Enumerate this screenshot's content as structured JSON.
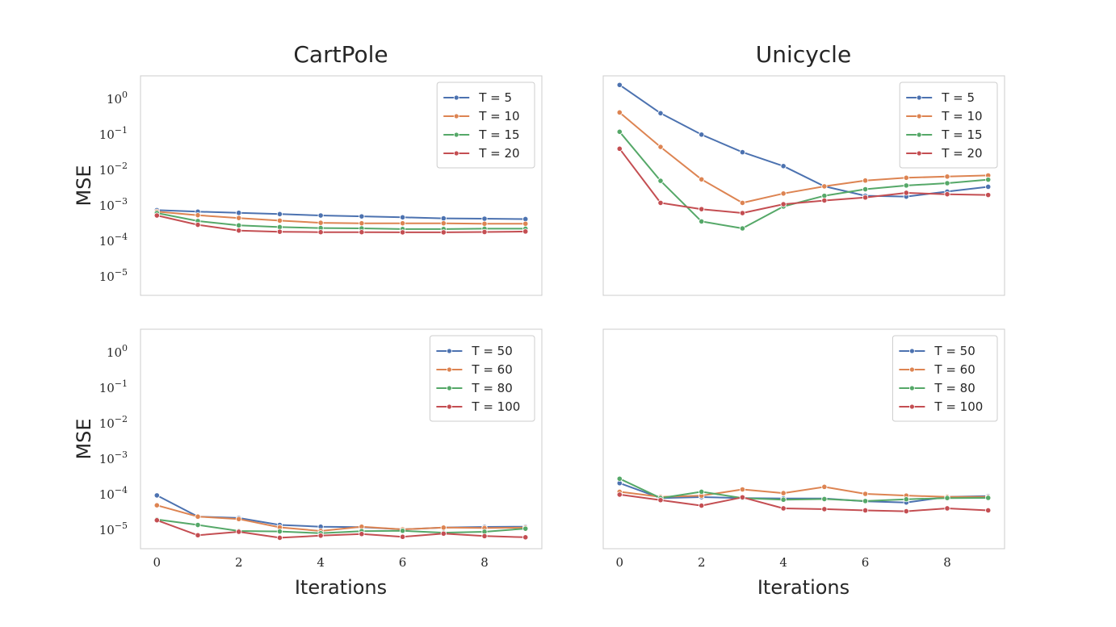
{
  "columns": [
    "CartPole",
    "Unicycle"
  ],
  "xlabel": "Iterations",
  "ylabel": "MSE",
  "series_colors": [
    "#4c72b0",
    "#dd8452",
    "#55a868",
    "#c44e52"
  ],
  "chart_data": [
    {
      "type": "line",
      "column": "CartPole",
      "row": 0,
      "x": [
        0,
        1,
        2,
        3,
        4,
        5,
        6,
        7,
        8,
        9
      ],
      "yscale": "log",
      "ylim": [
        3e-06,
        4.5
      ],
      "xlim": [
        -0.4,
        9.4
      ],
      "yticks": [
        -5,
        -4,
        -3,
        -2,
        -1,
        0
      ],
      "show_yticks": true,
      "show_xticks": false,
      "xticks": [],
      "legend_position": "upper-right",
      "series": [
        {
          "name": "T = 5",
          "values": [
            0.00075,
            0.00068,
            0.00063,
            0.00058,
            0.00053,
            0.0005,
            0.00047,
            0.00044,
            0.00043,
            0.00042
          ]
        },
        {
          "name": "T = 10",
          "values": [
            0.00068,
            0.00054,
            0.00045,
            0.00038,
            0.00033,
            0.00032,
            0.00032,
            0.00032,
            0.00031,
            0.00031
          ]
        },
        {
          "name": "T = 15",
          "values": [
            0.00062,
            0.00037,
            0.00028,
            0.00025,
            0.000235,
            0.00023,
            0.00022,
            0.00022,
            0.000225,
            0.000225
          ]
        },
        {
          "name": "T = 20",
          "values": [
            0.00053,
            0.00029,
            0.0002,
            0.000185,
            0.00018,
            0.00018,
            0.000178,
            0.000178,
            0.000182,
            0.000188
          ]
        }
      ]
    },
    {
      "type": "line",
      "column": "Unicycle",
      "row": 0,
      "x": [
        0,
        1,
        2,
        3,
        4,
        5,
        6,
        7,
        8,
        9
      ],
      "yscale": "log",
      "ylim": [
        3e-06,
        4.5
      ],
      "xlim": [
        -0.4,
        9.4
      ],
      "yticks": [],
      "show_yticks": false,
      "show_xticks": false,
      "xticks": [],
      "legend_position": "upper-right",
      "series": [
        {
          "name": "T = 5",
          "values": [
            2.5,
            0.4,
            0.1,
            0.032,
            0.013,
            0.0035,
            0.0019,
            0.0018,
            0.0025,
            0.0034
          ]
        },
        {
          "name": "T = 10",
          "values": [
            0.42,
            0.045,
            0.0055,
            0.0012,
            0.0022,
            0.0035,
            0.0051,
            0.0061,
            0.0066,
            0.0071
          ]
        },
        {
          "name": "T = 15",
          "values": [
            0.12,
            0.005,
            0.00036,
            0.00023,
            0.00095,
            0.0019,
            0.0029,
            0.0037,
            0.0043,
            0.0054
          ]
        },
        {
          "name": "T = 20",
          "values": [
            0.04,
            0.0012,
            0.0008,
            0.00062,
            0.0011,
            0.0014,
            0.0017,
            0.0023,
            0.0021,
            0.002
          ]
        }
      ]
    },
    {
      "type": "line",
      "column": "CartPole",
      "row": 1,
      "x": [
        0,
        1,
        2,
        3,
        4,
        5,
        6,
        7,
        8,
        9
      ],
      "yscale": "log",
      "ylim": [
        3e-06,
        4.5
      ],
      "xlim": [
        -0.4,
        9.4
      ],
      "yticks": [
        -5,
        -4,
        -3,
        -2,
        -1,
        0
      ],
      "show_yticks": true,
      "show_xticks": true,
      "xticks": [
        0,
        2,
        4,
        6,
        8
      ],
      "legend_position": "upper-right",
      "series": [
        {
          "name": "T = 50",
          "values": [
            9.5e-05,
            2.4e-05,
            2.2e-05,
            1.4e-05,
            1.25e-05,
            1.22e-05,
            1.05e-05,
            1.18e-05,
            1.23e-05,
            1.25e-05
          ]
        },
        {
          "name": "T = 60",
          "values": [
            5e-05,
            2.4e-05,
            2.05e-05,
            1.2e-05,
            9.5e-06,
            1.25e-05,
            1.05e-05,
            1.18e-05,
            1.15e-05,
            1.18e-05
          ]
        },
        {
          "name": "T = 80",
          "values": [
            2e-05,
            1.4e-05,
            9.5e-06,
            9.2e-06,
            8.2e-06,
            9.4e-06,
            9.6e-06,
            8.5e-06,
            9e-06,
            1.1e-05
          ]
        },
        {
          "name": "T = 100",
          "values": [
            1.9e-05,
            7.2e-06,
            9e-06,
            6.1e-06,
            7e-06,
            7.8e-06,
            6.5e-06,
            8e-06,
            6.8e-06,
            6.3e-06
          ]
        }
      ]
    },
    {
      "type": "line",
      "column": "Unicycle",
      "row": 1,
      "x": [
        0,
        1,
        2,
        3,
        4,
        5,
        6,
        7,
        8,
        9
      ],
      "yscale": "log",
      "ylim": [
        3e-06,
        4.5
      ],
      "xlim": [
        -0.4,
        9.4
      ],
      "yticks": [],
      "show_yticks": false,
      "show_xticks": true,
      "xticks": [
        0,
        2,
        4,
        6,
        8
      ],
      "legend_position": "upper-right",
      "series": [
        {
          "name": "T = 50",
          "values": [
            0.00021,
            8e-05,
            8.5e-05,
            8e-05,
            7.8e-05,
            7.8e-05,
            6.5e-05,
            6e-05,
            8.6e-05,
            9.1e-05
          ]
        },
        {
          "name": "T = 60",
          "values": [
            0.00012,
            8.6e-05,
            9.3e-05,
            0.00014,
            0.00011,
            0.000165,
            0.000105,
            9.4e-05,
            8.6e-05,
            8.6e-05
          ]
        },
        {
          "name": "T = 80",
          "values": [
            0.00028,
            8e-05,
            0.00012,
            8e-05,
            7.2e-05,
            7.5e-05,
            6.6e-05,
            7.4e-05,
            8e-05,
            8.1e-05
          ]
        },
        {
          "name": "T = 100",
          "values": [
            0.0001,
            7e-05,
            4.9e-05,
            8.4e-05,
            4.1e-05,
            3.9e-05,
            3.6e-05,
            3.4e-05,
            4.1e-05,
            3.6e-05
          ]
        }
      ]
    }
  ]
}
